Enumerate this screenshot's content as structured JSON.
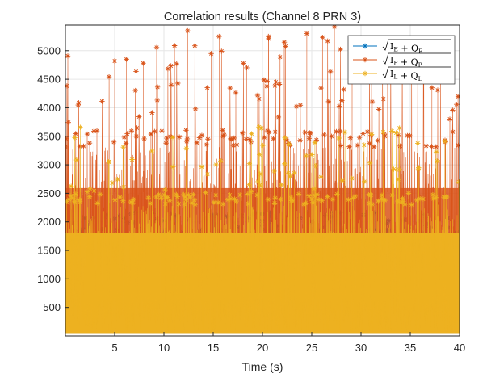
{
  "chart_data": {
    "type": "line",
    "title": "Correlation results (Channel 8 PRN 3)",
    "xlabel": "Time (s)",
    "ylabel": "",
    "xlim": [
      0,
      40
    ],
    "ylim": [
      0,
      5450
    ],
    "xticks": [
      5,
      10,
      15,
      20,
      25,
      30,
      35,
      40
    ],
    "yticks": [
      500,
      1000,
      1500,
      2000,
      2500,
      3000,
      3500,
      4000,
      4500,
      5000
    ],
    "xtick_labels": [
      "5",
      "10",
      "15",
      "20",
      "25",
      "30",
      "35",
      "40"
    ],
    "ytick_labels": [
      "500",
      "1000",
      "1500",
      "2000",
      "2500",
      "3000",
      "3500",
      "4000",
      "4500",
      "5000"
    ],
    "grid": true,
    "legend_position": "top-right",
    "marker": "asterisk",
    "sample_interval_s": 0.001,
    "series": [
      {
        "name": "sqrt(I_E^2 + Q_E^2)",
        "legend_main": "I",
        "legend_sub1": "E",
        "legend_mid": "+ Q",
        "legend_sub2": "E",
        "color": "#0072BD",
        "typical_range": [
          50,
          1900
        ],
        "peak_max": 2200
      },
      {
        "name": "sqrt(I_P^2 + Q_P^2)",
        "legend_main": "I",
        "legend_sub1": "P",
        "legend_mid": "+ Q",
        "legend_sub2": "P",
        "color": "#D95319",
        "typical_range": [
          100,
          3600
        ],
        "peak_max": 5420
      },
      {
        "name": "sqrt(I_L^2 + Q_L^2)",
        "legend_main": "I",
        "legend_sub1": "L",
        "legend_mid": "+ Q",
        "legend_sub2": "L",
        "color": "#EDB120",
        "typical_range": [
          50,
          2500
        ],
        "peak_max": 3820
      }
    ],
    "notable_peaks_P": [
      {
        "x": 12.4,
        "y": 5350
      },
      {
        "x": 15.6,
        "y": 5250
      },
      {
        "x": 20.6,
        "y": 5250
      },
      {
        "x": 24.5,
        "y": 5300
      },
      {
        "x": 27.3,
        "y": 5420
      },
      {
        "x": 5.0,
        "y": 4820
      },
      {
        "x": 6.2,
        "y": 4850
      },
      {
        "x": 7.9,
        "y": 4780
      },
      {
        "x": 14.8,
        "y": 4950
      },
      {
        "x": 18.4,
        "y": 4700
      },
      {
        "x": 29.1,
        "y": 4980
      },
      {
        "x": 32.7,
        "y": 4850
      },
      {
        "x": 37.2,
        "y": 4350
      }
    ]
  }
}
